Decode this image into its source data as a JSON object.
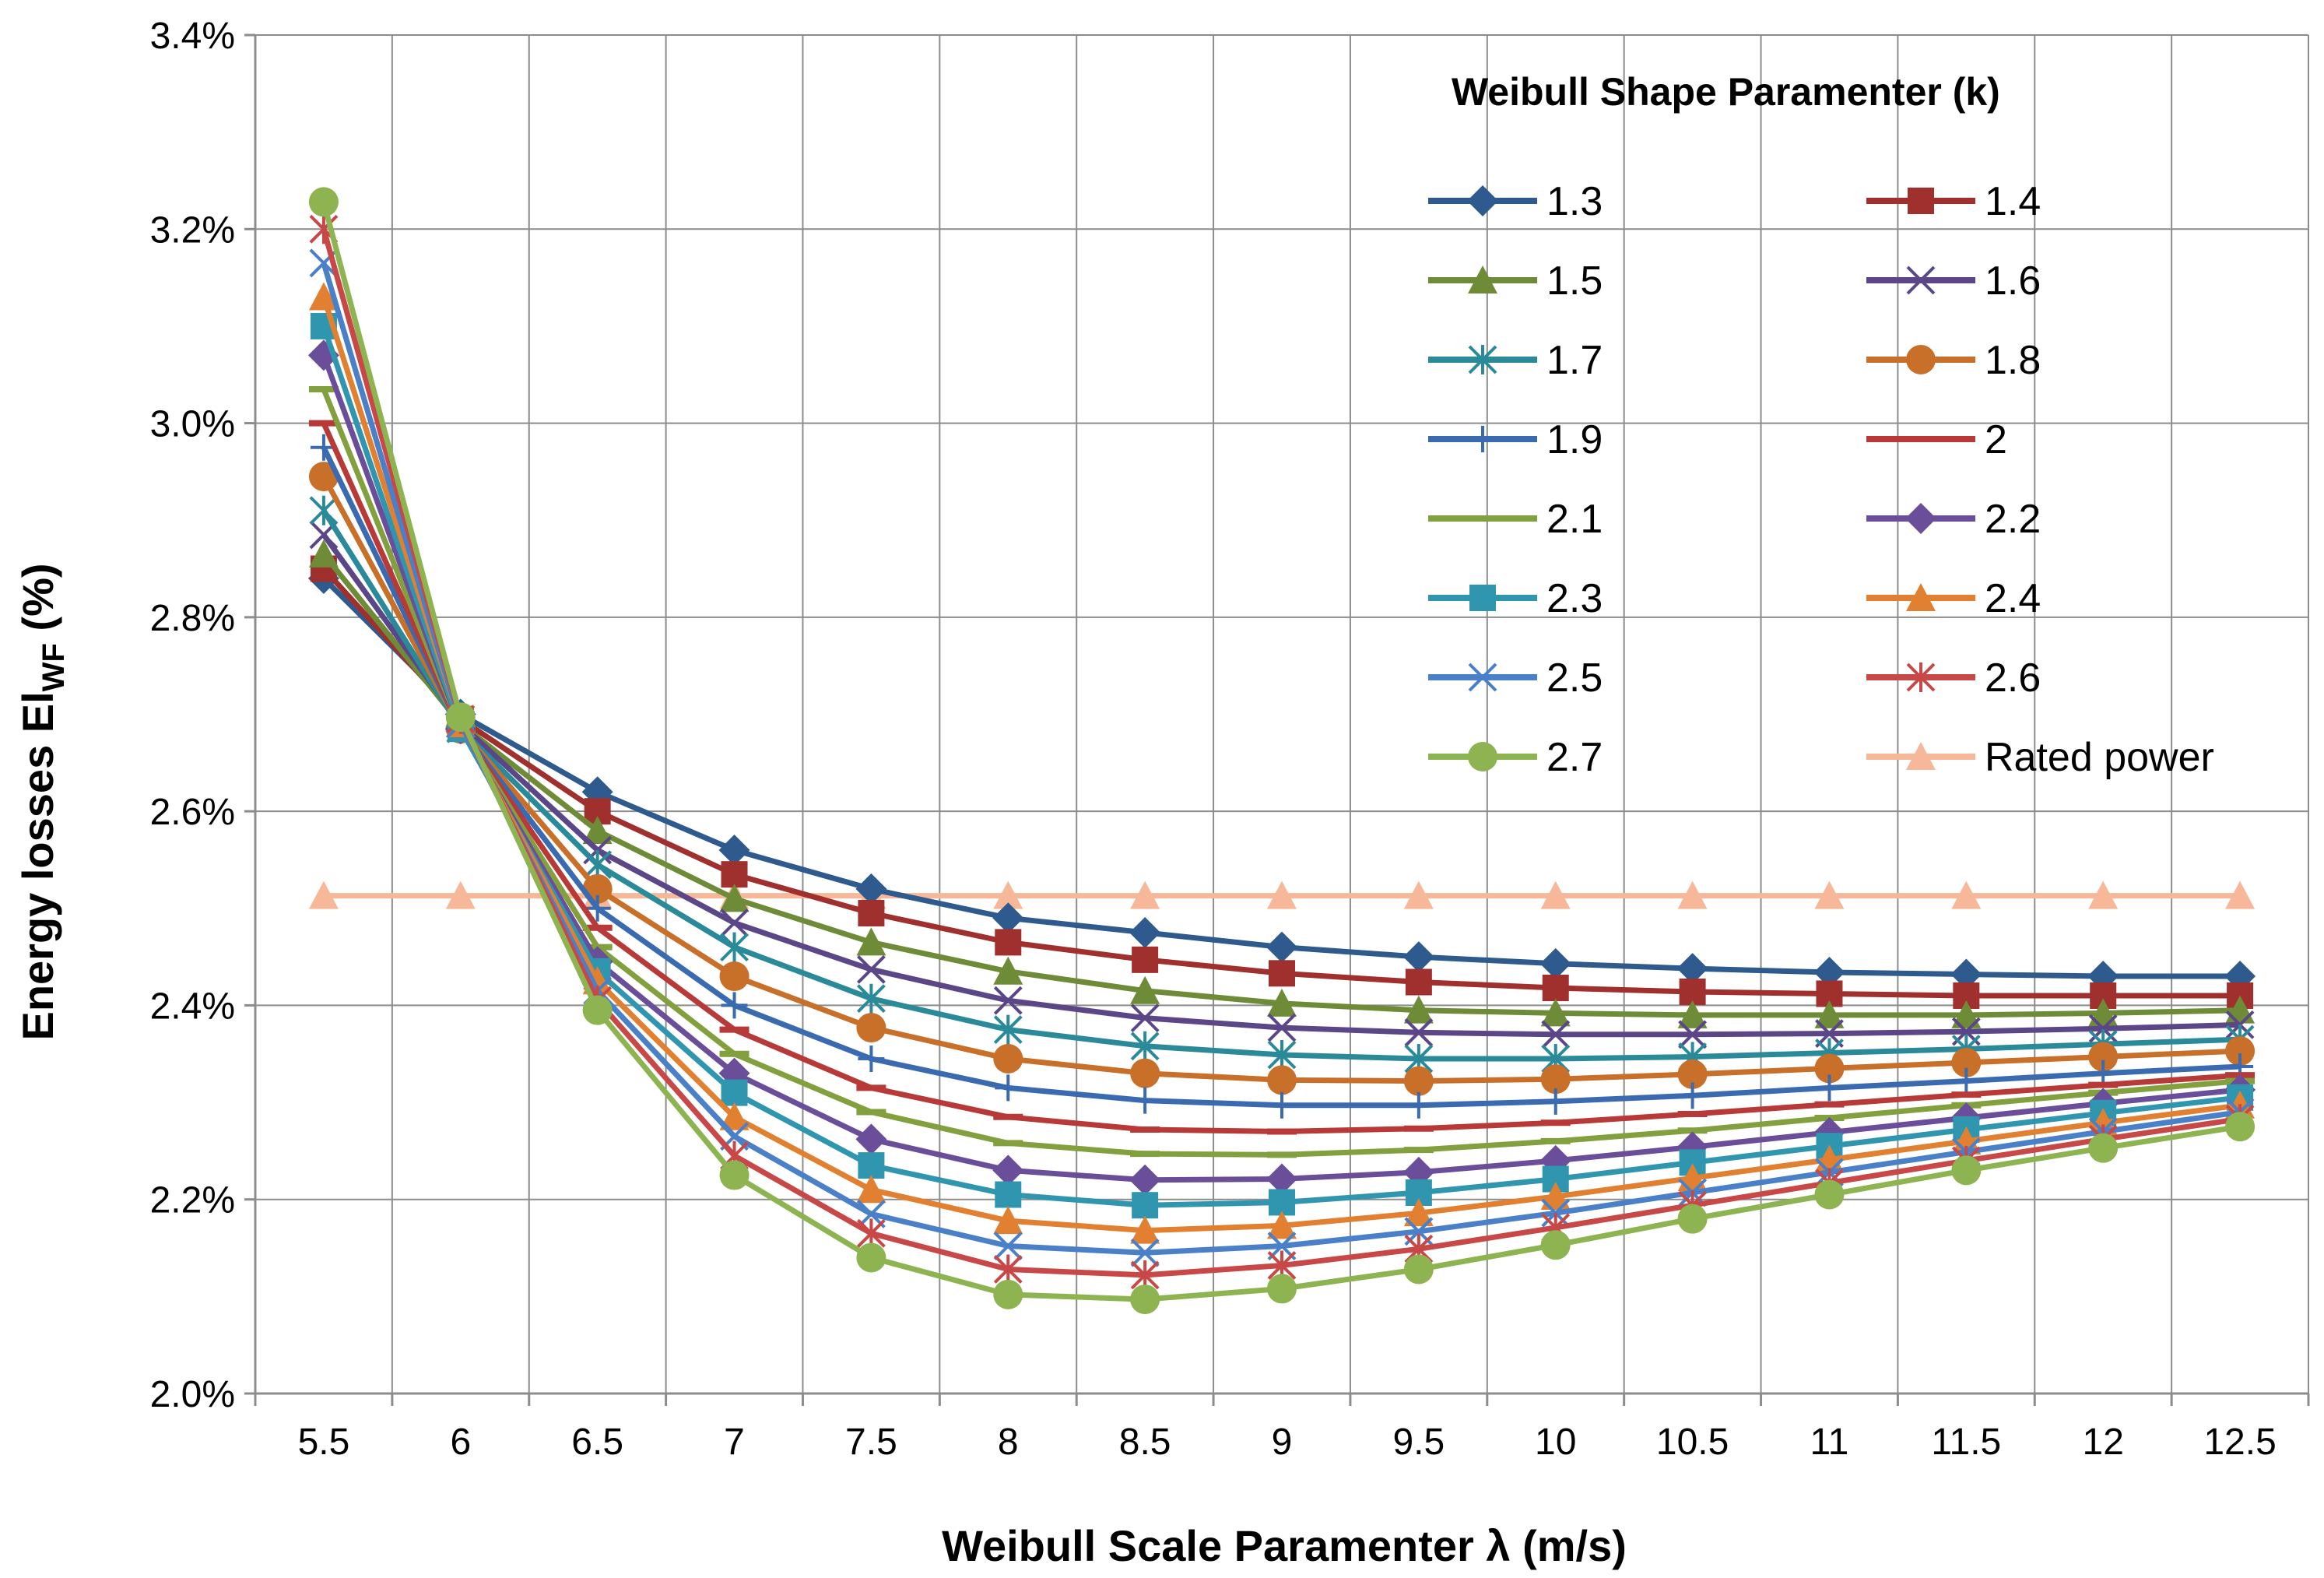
{
  "chart_data": {
    "type": "line",
    "title": "",
    "xlabel": "Weibull Scale Paramenter  λ (m/s)",
    "ylabel_main": "Energy losses El",
    "ylabel_sub": "WF",
    "ylabel_suffix": " (%)",
    "legend_title": "Weibull Shape Paramenter  (k)",
    "legend_position": "top-right",
    "grid": true,
    "ylim": [
      2.0,
      3.4
    ],
    "y_ticks": [
      "2.0%",
      "2.2%",
      "2.4%",
      "2.6%",
      "2.8%",
      "3.0%",
      "3.2%",
      "3.4%"
    ],
    "categories": [
      "5.5",
      "6",
      "6.5",
      "7",
      "7.5",
      "8",
      "8.5",
      "9",
      "9.5",
      "10",
      "10.5",
      "11",
      "11.5",
      "12",
      "12.5"
    ],
    "series": [
      {
        "name": "1.3",
        "color": "#2E5A8E",
        "marker": "diamond",
        "values": [
          2.84,
          2.7,
          2.62,
          2.56,
          2.52,
          2.49,
          2.475,
          2.46,
          2.45,
          2.443,
          2.438,
          2.434,
          2.432,
          2.43,
          2.43
        ]
      },
      {
        "name": "1.4",
        "color": "#A0302E",
        "marker": "square",
        "values": [
          2.85,
          2.695,
          2.6,
          2.535,
          2.495,
          2.465,
          2.447,
          2.433,
          2.424,
          2.418,
          2.414,
          2.412,
          2.41,
          2.41,
          2.41
        ]
      },
      {
        "name": "1.5",
        "color": "#6E8C38",
        "marker": "triangle",
        "values": [
          2.865,
          2.69,
          2.58,
          2.51,
          2.465,
          2.435,
          2.415,
          2.402,
          2.395,
          2.392,
          2.39,
          2.39,
          2.39,
          2.392,
          2.395
        ]
      },
      {
        "name": "1.6",
        "color": "#5B4788",
        "marker": "x",
        "values": [
          2.885,
          2.69,
          2.56,
          2.485,
          2.437,
          2.405,
          2.387,
          2.377,
          2.372,
          2.37,
          2.37,
          2.371,
          2.373,
          2.376,
          2.38
        ]
      },
      {
        "name": "1.7",
        "color": "#2A8A9A",
        "marker": "star",
        "values": [
          2.91,
          2.685,
          2.545,
          2.46,
          2.407,
          2.375,
          2.358,
          2.349,
          2.345,
          2.345,
          2.347,
          2.351,
          2.355,
          2.36,
          2.365
        ]
      },
      {
        "name": "1.8",
        "color": "#C8702A",
        "marker": "circle",
        "values": [
          2.945,
          2.685,
          2.52,
          2.43,
          2.377,
          2.345,
          2.33,
          2.323,
          2.322,
          2.324,
          2.329,
          2.335,
          2.341,
          2.347,
          2.353
        ]
      },
      {
        "name": "1.9",
        "color": "#3A6BB0",
        "marker": "plus",
        "values": [
          2.975,
          2.685,
          2.5,
          2.4,
          2.345,
          2.315,
          2.302,
          2.297,
          2.297,
          2.301,
          2.307,
          2.315,
          2.322,
          2.33,
          2.337
        ]
      },
      {
        "name": "2",
        "color": "#B83A38",
        "marker": "dash",
        "values": [
          3.0,
          2.685,
          2.48,
          2.375,
          2.315,
          2.285,
          2.272,
          2.27,
          2.273,
          2.279,
          2.288,
          2.298,
          2.308,
          2.318,
          2.328
        ]
      },
      {
        "name": "2.1",
        "color": "#82A03E",
        "marker": "dash",
        "values": [
          3.035,
          2.685,
          2.46,
          2.35,
          2.29,
          2.258,
          2.247,
          2.246,
          2.251,
          2.26,
          2.271,
          2.284,
          2.297,
          2.31,
          2.322
        ]
      },
      {
        "name": "2.2",
        "color": "#6A4E9A",
        "marker": "diamond",
        "values": [
          3.07,
          2.685,
          2.445,
          2.33,
          2.262,
          2.23,
          2.22,
          2.221,
          2.228,
          2.24,
          2.254,
          2.269,
          2.284,
          2.299,
          2.313
        ]
      },
      {
        "name": "2.3",
        "color": "#3096B0",
        "marker": "square",
        "values": [
          3.1,
          2.685,
          2.435,
          2.31,
          2.235,
          2.205,
          2.194,
          2.197,
          2.207,
          2.221,
          2.238,
          2.255,
          2.272,
          2.289,
          2.305
        ]
      },
      {
        "name": "2.4",
        "color": "#E08030",
        "marker": "triangle",
        "values": [
          3.13,
          2.69,
          2.425,
          2.285,
          2.21,
          2.178,
          2.168,
          2.173,
          2.186,
          2.203,
          2.222,
          2.241,
          2.26,
          2.279,
          2.297
        ]
      },
      {
        "name": "2.5",
        "color": "#4A80C8",
        "marker": "x",
        "values": [
          3.165,
          2.69,
          2.415,
          2.265,
          2.185,
          2.152,
          2.145,
          2.152,
          2.167,
          2.186,
          2.207,
          2.228,
          2.249,
          2.27,
          2.29
        ]
      },
      {
        "name": "2.6",
        "color": "#C84848",
        "marker": "star",
        "values": [
          3.2,
          2.695,
          2.405,
          2.245,
          2.165,
          2.128,
          2.122,
          2.132,
          2.149,
          2.171,
          2.194,
          2.217,
          2.24,
          2.262,
          2.283
        ]
      },
      {
        "name": "2.7",
        "color": "#8DB450",
        "marker": "circle",
        "values": [
          3.228,
          2.697,
          2.395,
          2.225,
          2.14,
          2.102,
          2.097,
          2.108,
          2.128,
          2.153,
          2.18,
          2.205,
          2.23,
          2.253,
          2.275
        ]
      },
      {
        "name": "Rated power",
        "color": "#F7B89A",
        "marker": "triangle",
        "values": [
          2.513,
          2.513,
          2.513,
          2.513,
          2.513,
          2.513,
          2.513,
          2.513,
          2.513,
          2.513,
          2.513,
          2.513,
          2.513,
          2.513,
          2.513
        ]
      }
    ]
  }
}
